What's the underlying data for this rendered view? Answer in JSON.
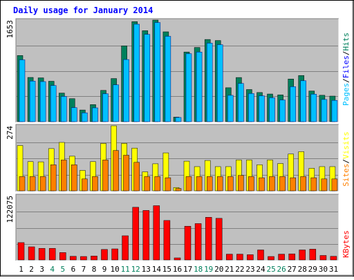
{
  "chart_data": {
    "type": "bar",
    "title": "Daily usage for January 2014",
    "categories": [
      "1",
      "2",
      "3",
      "4",
      "5",
      "6",
      "7",
      "8",
      "9",
      "10",
      "11",
      "12",
      "13",
      "14",
      "15",
      "16",
      "17",
      "18",
      "19",
      "20",
      "21",
      "22",
      "23",
      "24",
      "25",
      "26",
      "27",
      "28",
      "29",
      "30",
      "31"
    ],
    "weekend_days": [
      "4",
      "5",
      "11",
      "12",
      "18",
      "19",
      "25",
      "26"
    ],
    "panels": [
      {
        "id": "traffic",
        "axis_max_label": "1653",
        "ymax": 1653,
        "legend": [
          "Pages",
          "/",
          "Files",
          "/",
          "Hits"
        ],
        "series": [
          {
            "name": "Hits",
            "values": [
              1076,
              720,
              713,
              658,
              466,
              374,
              190,
              278,
              509,
              702,
              1234,
              1627,
              1480,
              1653,
              1462,
              74,
              1134,
              1208,
              1337,
              1320,
              552,
              719,
              523,
              474,
              450,
              436,
              694,
              751,
              499,
              429,
              416
            ]
          },
          {
            "name": "Files",
            "values": [
              1006,
              660,
              652,
              588,
              410,
              228,
              144,
              225,
              454,
              599,
              1011,
              1585,
              1420,
              1613,
              1389,
              69,
              1106,
              1132,
              1277,
              1253,
              428,
              622,
              458,
              420,
              389,
              353,
              569,
              666,
              448,
              361,
              346
            ]
          },
          {
            "name": "Pages",
            "values": [
              0,
              0,
              0,
              0,
              0,
              0,
              0,
              0,
              0,
              0,
              0,
              0,
              0,
              0,
              0,
              0,
              0,
              0,
              0,
              0,
              0,
              0,
              0,
              0,
              0,
              0,
              0,
              0,
              0,
              0,
              0
            ]
          }
        ]
      },
      {
        "id": "visitors",
        "axis_max_label": "274",
        "ymax": 274,
        "legend": [
          "Sites",
          "/",
          "Visits"
        ],
        "series": [
          {
            "name": "Visits",
            "values": [
              191,
              123,
              122,
              178,
              204,
              146,
              86,
              123,
              200,
              274,
              200,
              180,
              80,
              114,
              160,
              14,
              125,
              102,
              128,
              102,
              102,
              130,
              130,
              110,
              130,
              115,
              155,
              165,
              95,
              102,
              102
            ]
          },
          {
            "name": "Sites",
            "values": [
              60,
              60,
              60,
              110,
              130,
              110,
              50,
              60,
              130,
              170,
              150,
              120,
              60,
              60,
              55,
              10,
              60,
              60,
              60,
              60,
              60,
              65,
              60,
              55,
              60,
              60,
              55,
              60,
              55,
              50,
              50
            ]
          }
        ]
      },
      {
        "id": "kbytes",
        "axis_max_label": "122075",
        "ymax": 122075,
        "legend": [
          "KBytes"
        ],
        "series": [
          {
            "name": "KBytes",
            "values": [
              33000,
              25000,
              22000,
              22000,
              14000,
              7000,
              6500,
              7500,
              20000,
              21000,
              46000,
              100000,
              94000,
              103000,
              75000,
              4000,
              64000,
              69000,
              81000,
              79000,
              11000,
              11000,
              10000,
              19000,
              6500,
              11000,
              11500,
              19000,
              20500,
              8500,
              7000
            ]
          }
        ]
      }
    ],
    "colors": {
      "background": "#ffffff",
      "plot_bg": "#c0c0c0",
      "gridline": "#808080",
      "title": "#0000ff",
      "axis_text": "#000000",
      "weekend_text": "#00805c",
      "hits": "#00805c",
      "files": "#0000ff",
      "pages": "#00c0ff",
      "visits": "#ffff00",
      "sites": "#ff8000",
      "kbytes": "#ff0000"
    }
  }
}
